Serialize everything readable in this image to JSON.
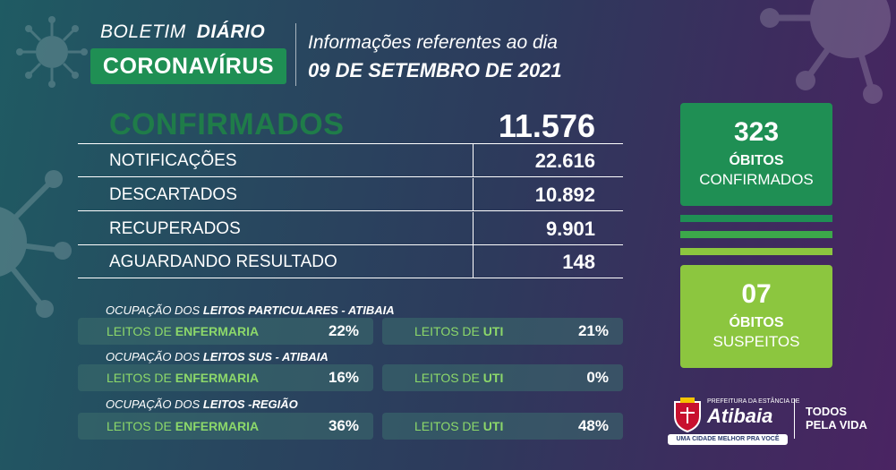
{
  "header": {
    "boletim": "BOLETIM",
    "diario": "DIÁRIO",
    "coronavirus": "CORONAVÍRUS",
    "info": "Informações referentes ao dia",
    "date": "09 DE SETEMBRO DE 2021"
  },
  "confirmados": {
    "label": "CONFIRMADOS",
    "value": "11.576"
  },
  "rows": [
    {
      "label": "NOTIFICAÇÕES",
      "value": "22.616"
    },
    {
      "label": "DESCARTADOS",
      "value": "10.892"
    },
    {
      "label": "RECUPERADOS",
      "value": "9.901"
    },
    {
      "label": "AGUARDANDO RESULTADO",
      "value": "148"
    }
  ],
  "obitos_confirmados": {
    "value": "323",
    "line1": "ÓBITOS",
    "line2": "CONFIRMADOS"
  },
  "obitos_suspeitos": {
    "value": "07",
    "line1": "ÓBITOS",
    "line2": "SUSPEITOS"
  },
  "occupancy": [
    {
      "title_pre": "OCUPAÇÃO DOS ",
      "title_bold": "LEITOS PARTICULARES - ATIBAIA",
      "enf_pre": "LEITOS DE ",
      "enf_bold": "ENFERMARIA",
      "enf_pct": "22%",
      "uti_pre": "LEITOS DE ",
      "uti_bold": "UTI",
      "uti_pct": "21%"
    },
    {
      "title_pre": "OCUPAÇÃO DOS ",
      "title_bold": "LEITOS SUS - ATIBAIA",
      "enf_pre": "LEITOS DE ",
      "enf_bold": "ENFERMARIA",
      "enf_pct": "16%",
      "uti_pre": "LEITOS DE ",
      "uti_bold": "UTI",
      "uti_pct": "0%"
    },
    {
      "title_pre": "OCUPAÇÃO DOS ",
      "title_bold": "LEITOS -REGIÃO",
      "enf_pre": "LEITOS DE ",
      "enf_bold": "ENFERMARIA",
      "enf_pct": "36%",
      "uti_pre": "LEITOS DE ",
      "uti_bold": "UTI",
      "uti_pct": "48%"
    }
  ],
  "logo": {
    "prefeitura": "PREFEITURA DA ESTÂNCIA DE",
    "name": "Atibaia",
    "slogan": "UMA CIDADE MELHOR PRA VOCÊ",
    "todos": "TODOS",
    "pela_vida": "PELA VIDA"
  },
  "colors": {
    "green_dark": "#1f8f54",
    "green_light": "#8cc63f",
    "confirmados_text": "#1f7c49",
    "leitos_label": "#8cd86a"
  }
}
